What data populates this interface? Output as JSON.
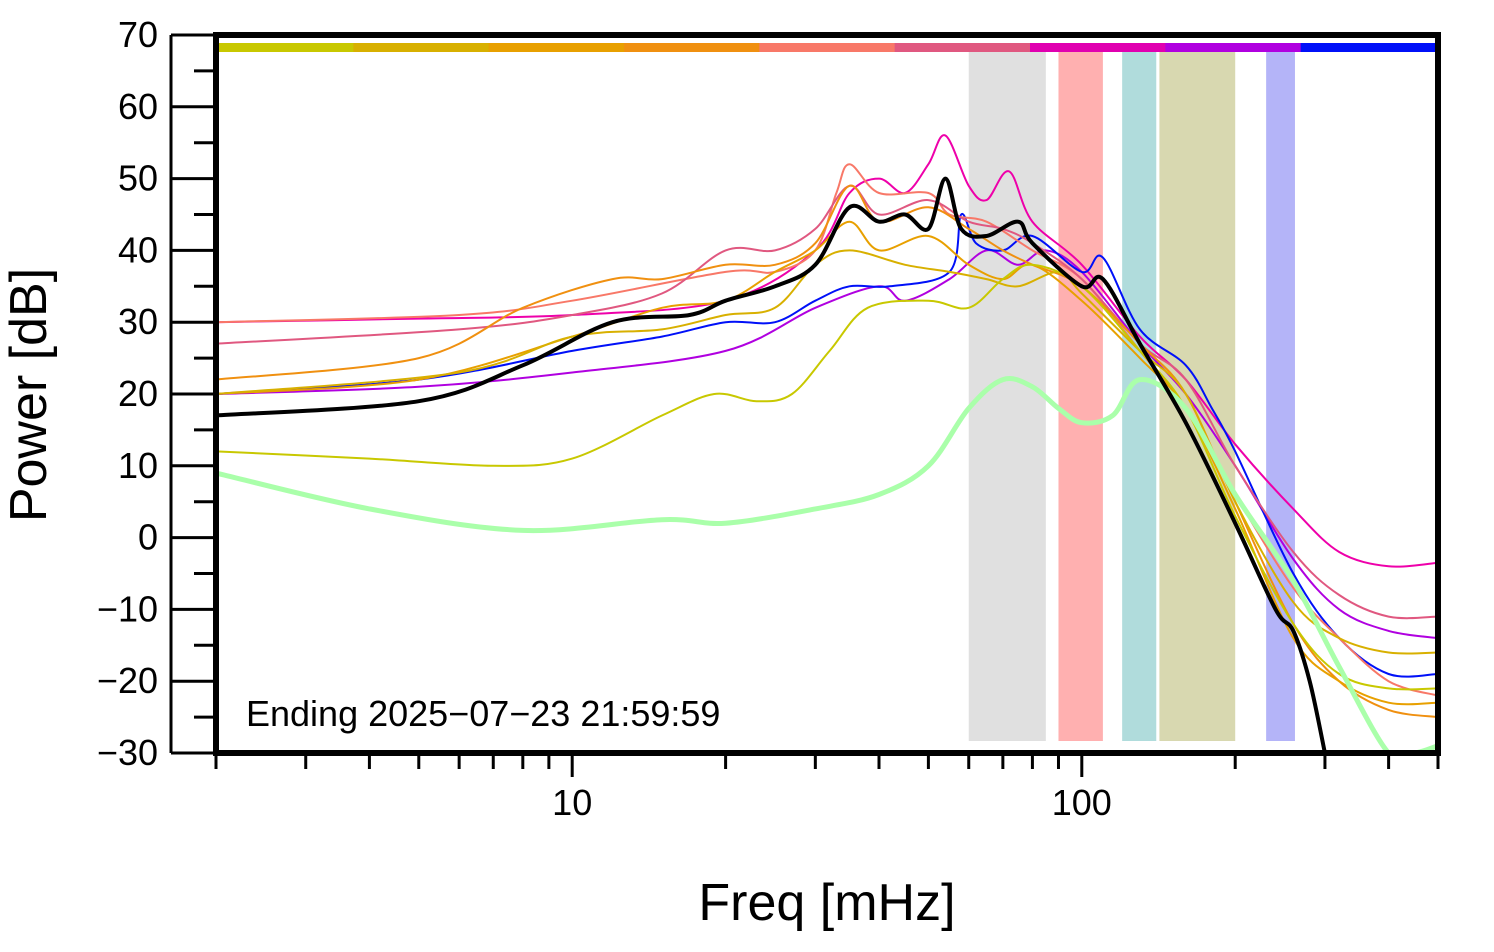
{
  "chart_data": {
    "type": "line",
    "xlabel": "Freq [mHz]",
    "ylabel": "Power [dB]",
    "xscale": "log",
    "xlim": [
      2,
      500
    ],
    "ylim": [
      -30,
      70
    ],
    "x_major_ticks": [
      10,
      100
    ],
    "x_tick_labels": [
      "10",
      "100"
    ],
    "y_ticks": [
      -30,
      -20,
      -10,
      0,
      10,
      20,
      30,
      40,
      50,
      60,
      70
    ],
    "y_tick_labels": [
      "−30",
      "−20",
      "−10",
      "0",
      "10",
      "20",
      "30",
      "40",
      "50",
      "60",
      "70"
    ],
    "annotation": "Ending 2025−07−23 21:59:59",
    "grid": false,
    "color_strip": [
      "#c8c800",
      "#d8b000",
      "#e8a000",
      "#f09010",
      "#f87868",
      "#e05880",
      "#e000b0",
      "#b000e0",
      "#0010f8"
    ],
    "bands": [
      {
        "x": [
          60,
          85
        ],
        "color": "#e0e0e0"
      },
      {
        "x": [
          90,
          110
        ],
        "color": "#ffb0b0"
      },
      {
        "x": [
          120,
          140
        ],
        "color": "#b0dcdc"
      },
      {
        "x": [
          142,
          200
        ],
        "color": "#d8d8b0"
      },
      {
        "x": [
          230,
          262
        ],
        "color": "#b4b4f8"
      }
    ],
    "series": [
      {
        "color": "#ee00aa",
        "width": 2,
        "points": [
          [
            2,
            30
          ],
          [
            5,
            30.5
          ],
          [
            10,
            31
          ],
          [
            20,
            33
          ],
          [
            30,
            40
          ],
          [
            35,
            48
          ],
          [
            40,
            50
          ],
          [
            45,
            48
          ],
          [
            50,
            52
          ],
          [
            54,
            56
          ],
          [
            60,
            49
          ],
          [
            65,
            47
          ],
          [
            72,
            51
          ],
          [
            80,
            44
          ],
          [
            100,
            38
          ],
          [
            130,
            28
          ],
          [
            160,
            22
          ],
          [
            200,
            13
          ],
          [
            260,
            4
          ],
          [
            320,
            -2
          ],
          [
            400,
            -4
          ],
          [
            500,
            -3.5
          ]
        ]
      },
      {
        "color": "#b000e0",
        "width": 2,
        "points": [
          [
            2,
            20
          ],
          [
            5,
            21
          ],
          [
            10,
            23
          ],
          [
            20,
            26
          ],
          [
            30,
            32
          ],
          [
            40,
            35
          ],
          [
            45,
            33
          ],
          [
            55,
            36
          ],
          [
            65,
            40
          ],
          [
            75,
            38
          ],
          [
            85,
            40
          ],
          [
            100,
            37
          ],
          [
            130,
            27
          ],
          [
            160,
            20
          ],
          [
            200,
            10
          ],
          [
            260,
            -3
          ],
          [
            320,
            -10
          ],
          [
            400,
            -13
          ],
          [
            500,
            -14
          ]
        ]
      },
      {
        "color": "#0010f8",
        "width": 2,
        "points": [
          [
            2,
            20
          ],
          [
            5,
            22
          ],
          [
            10,
            26
          ],
          [
            15,
            28
          ],
          [
            20,
            30
          ],
          [
            25,
            30
          ],
          [
            30,
            33
          ],
          [
            35,
            35
          ],
          [
            42,
            35
          ],
          [
            55,
            37
          ],
          [
            58,
            45
          ],
          [
            62,
            41
          ],
          [
            70,
            40
          ],
          [
            80,
            42
          ],
          [
            100,
            37
          ],
          [
            110,
            39
          ],
          [
            130,
            29
          ],
          [
            160,
            24
          ],
          [
            180,
            18
          ],
          [
            200,
            12
          ],
          [
            260,
            -5
          ],
          [
            320,
            -14
          ],
          [
            400,
            -19
          ],
          [
            500,
            -19
          ]
        ]
      },
      {
        "color": "#f87868",
        "width": 2,
        "points": [
          [
            2,
            30
          ],
          [
            6,
            31
          ],
          [
            10,
            33
          ],
          [
            20,
            37
          ],
          [
            25,
            37
          ],
          [
            30,
            40
          ],
          [
            33,
            48
          ],
          [
            35,
            52
          ],
          [
            40,
            48
          ],
          [
            50,
            48
          ],
          [
            55,
            45
          ],
          [
            65,
            44
          ],
          [
            80,
            40
          ],
          [
            100,
            36
          ],
          [
            130,
            26
          ],
          [
            160,
            18
          ],
          [
            200,
            6
          ],
          [
            260,
            -7
          ],
          [
            320,
            -14
          ],
          [
            400,
            -20
          ],
          [
            500,
            -22
          ]
        ]
      },
      {
        "color": "#e05880",
        "width": 2,
        "points": [
          [
            2,
            27
          ],
          [
            6,
            29
          ],
          [
            10,
            31
          ],
          [
            15,
            34
          ],
          [
            20,
            40
          ],
          [
            25,
            40
          ],
          [
            30,
            43
          ],
          [
            35,
            49
          ],
          [
            40,
            45
          ],
          [
            50,
            47
          ],
          [
            60,
            44
          ],
          [
            70,
            43
          ],
          [
            80,
            41
          ],
          [
            100,
            36
          ],
          [
            130,
            27
          ],
          [
            160,
            22
          ],
          [
            200,
            10
          ],
          [
            260,
            -2
          ],
          [
            320,
            -8
          ],
          [
            400,
            -11
          ],
          [
            500,
            -11
          ]
        ]
      },
      {
        "color": "#f09010",
        "width": 2,
        "points": [
          [
            2,
            22
          ],
          [
            5,
            25
          ],
          [
            8,
            32
          ],
          [
            12,
            36
          ],
          [
            15,
            36
          ],
          [
            20,
            38
          ],
          [
            25,
            38
          ],
          [
            30,
            41
          ],
          [
            35,
            49
          ],
          [
            40,
            44
          ],
          [
            50,
            46
          ],
          [
            60,
            43
          ],
          [
            70,
            40
          ],
          [
            80,
            38
          ],
          [
            100,
            35
          ],
          [
            130,
            27
          ],
          [
            160,
            20
          ],
          [
            200,
            5
          ],
          [
            260,
            -12
          ],
          [
            320,
            -20
          ],
          [
            400,
            -24
          ],
          [
            500,
            -25
          ]
        ]
      },
      {
        "color": "#e8a000",
        "width": 2,
        "points": [
          [
            2,
            20
          ],
          [
            5,
            22
          ],
          [
            10,
            28
          ],
          [
            15,
            32
          ],
          [
            20,
            33
          ],
          [
            25,
            37
          ],
          [
            30,
            40
          ],
          [
            35,
            44
          ],
          [
            40,
            40
          ],
          [
            50,
            42
          ],
          [
            60,
            38
          ],
          [
            70,
            36
          ],
          [
            80,
            38
          ],
          [
            100,
            33
          ],
          [
            130,
            25
          ],
          [
            160,
            18
          ],
          [
            200,
            4
          ],
          [
            260,
            -14
          ],
          [
            320,
            -20
          ],
          [
            400,
            -23
          ],
          [
            500,
            -23
          ]
        ]
      },
      {
        "color": "#d8b000",
        "width": 2,
        "points": [
          [
            2,
            20
          ],
          [
            6,
            23
          ],
          [
            10,
            28
          ],
          [
            15,
            29
          ],
          [
            20,
            31
          ],
          [
            25,
            32
          ],
          [
            30,
            38
          ],
          [
            35,
            40
          ],
          [
            45,
            38
          ],
          [
            55,
            37
          ],
          [
            65,
            36
          ],
          [
            75,
            35
          ],
          [
            90,
            37
          ],
          [
            100,
            34
          ],
          [
            130,
            26
          ],
          [
            160,
            20
          ],
          [
            200,
            5
          ],
          [
            260,
            -9
          ],
          [
            320,
            -14
          ],
          [
            400,
            -16
          ],
          [
            500,
            -16
          ]
        ]
      },
      {
        "color": "#c8c800",
        "width": 2,
        "points": [
          [
            2,
            12
          ],
          [
            4,
            11
          ],
          [
            7,
            10
          ],
          [
            10,
            11
          ],
          [
            15,
            17
          ],
          [
            19,
            20
          ],
          [
            23,
            19
          ],
          [
            27,
            20
          ],
          [
            32,
            26
          ],
          [
            38,
            32
          ],
          [
            50,
            33
          ],
          [
            60,
            32
          ],
          [
            70,
            36
          ],
          [
            80,
            38
          ],
          [
            100,
            35
          ],
          [
            130,
            26
          ],
          [
            160,
            18
          ],
          [
            200,
            3
          ],
          [
            260,
            -12
          ],
          [
            320,
            -19
          ],
          [
            400,
            -21
          ],
          [
            500,
            -21
          ]
        ]
      },
      {
        "color": "#aaffaa",
        "width": 5,
        "points": [
          [
            2,
            9
          ],
          [
            4,
            4
          ],
          [
            8,
            1
          ],
          [
            15,
            2.5
          ],
          [
            20,
            2
          ],
          [
            30,
            4
          ],
          [
            40,
            6
          ],
          [
            50,
            10
          ],
          [
            60,
            18
          ],
          [
            70,
            22
          ],
          [
            80,
            21
          ],
          [
            90,
            18
          ],
          [
            100,
            16
          ],
          [
            115,
            17
          ],
          [
            130,
            22
          ],
          [
            160,
            18
          ],
          [
            200,
            6
          ],
          [
            260,
            -6
          ],
          [
            320,
            -18
          ],
          [
            400,
            -30
          ],
          [
            450,
            -30
          ],
          [
            500,
            -29
          ]
        ]
      },
      {
        "color": "#000000",
        "width": 4,
        "points": [
          [
            2,
            17
          ],
          [
            5,
            19
          ],
          [
            8,
            24
          ],
          [
            12,
            30
          ],
          [
            17,
            31
          ],
          [
            20,
            33
          ],
          [
            25,
            35
          ],
          [
            30,
            38
          ],
          [
            35,
            46
          ],
          [
            40,
            44
          ],
          [
            45,
            45
          ],
          [
            50,
            43
          ],
          [
            54,
            50
          ],
          [
            58,
            43
          ],
          [
            65,
            42
          ],
          [
            75,
            44
          ],
          [
            80,
            41
          ],
          [
            100,
            35
          ],
          [
            110,
            36
          ],
          [
            130,
            27
          ],
          [
            160,
            16
          ],
          [
            200,
            2
          ],
          [
            240,
            -10
          ],
          [
            260,
            -13
          ],
          [
            280,
            -20
          ],
          [
            300,
            -30
          ]
        ]
      }
    ]
  }
}
